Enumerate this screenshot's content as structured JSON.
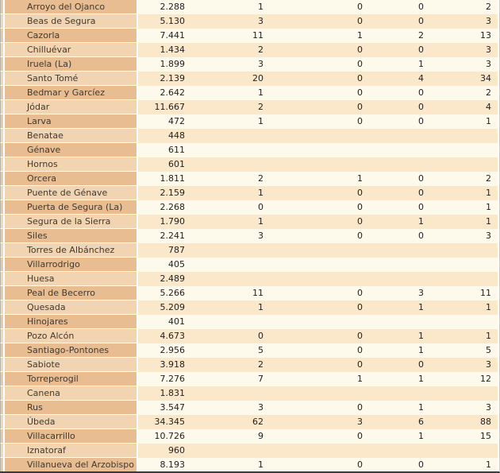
{
  "chart_data": {
    "type": "table",
    "title": "",
    "header_visible": false,
    "rows": [
      {
        "municipality": "Arroyo del Ojanco",
        "values": [
          "2.288",
          "1",
          "0",
          "0",
          "2"
        ]
      },
      {
        "municipality": "Beas de Segura",
        "values": [
          "5.130",
          "3",
          "0",
          "0",
          "3"
        ]
      },
      {
        "municipality": "Cazorla",
        "values": [
          "7.441",
          "11",
          "1",
          "2",
          "13"
        ]
      },
      {
        "municipality": "Chilluévar",
        "values": [
          "1.434",
          "2",
          "0",
          "0",
          "3"
        ]
      },
      {
        "municipality": "Iruela (La)",
        "values": [
          "1.899",
          "3",
          "0",
          "1",
          "3"
        ]
      },
      {
        "municipality": "Santo Tomé",
        "values": [
          "2.139",
          "20",
          "0",
          "4",
          "34"
        ]
      },
      {
        "municipality": "Bedmar y Garcíez",
        "values": [
          "2.642",
          "1",
          "0",
          "0",
          "2"
        ]
      },
      {
        "municipality": "Jódar",
        "values": [
          "11.667",
          "2",
          "0",
          "0",
          "4"
        ]
      },
      {
        "municipality": "Larva",
        "values": [
          "472",
          "1",
          "0",
          "0",
          "1"
        ]
      },
      {
        "municipality": "Benatae",
        "values": [
          "448",
          "",
          "",
          "",
          ""
        ]
      },
      {
        "municipality": "Génave",
        "values": [
          "611",
          "",
          "",
          "",
          ""
        ]
      },
      {
        "municipality": "Hornos",
        "values": [
          "601",
          "",
          "",
          "",
          ""
        ]
      },
      {
        "municipality": "Orcera",
        "values": [
          "1.811",
          "2",
          "1",
          "0",
          "2"
        ]
      },
      {
        "municipality": "Puente de Génave",
        "values": [
          "2.159",
          "1",
          "0",
          "0",
          "1"
        ]
      },
      {
        "municipality": "Puerta de Segura (La)",
        "values": [
          "2.268",
          "0",
          "0",
          "0",
          "1"
        ]
      },
      {
        "municipality": "Segura de la Sierra",
        "values": [
          "1.790",
          "1",
          "0",
          "1",
          "1"
        ]
      },
      {
        "municipality": "Siles",
        "values": [
          "2.241",
          "3",
          "0",
          "0",
          "3"
        ]
      },
      {
        "municipality": "Torres de Albánchez",
        "values": [
          "787",
          "",
          "",
          "",
          ""
        ]
      },
      {
        "municipality": "Villarrodrigo",
        "values": [
          "405",
          "",
          "",
          "",
          ""
        ]
      },
      {
        "municipality": "Huesa",
        "values": [
          "2.489",
          "",
          "",
          "",
          ""
        ]
      },
      {
        "municipality": "Peal de Becerro",
        "values": [
          "5.266",
          "11",
          "0",
          "3",
          "11"
        ]
      },
      {
        "municipality": "Quesada",
        "values": [
          "5.209",
          "1",
          "0",
          "1",
          "1"
        ]
      },
      {
        "municipality": "Hinojares",
        "values": [
          "401",
          "",
          "",
          "",
          ""
        ]
      },
      {
        "municipality": "Pozo Alcón",
        "values": [
          "4.673",
          "0",
          "0",
          "1",
          "1"
        ]
      },
      {
        "municipality": "Santiago-Pontones",
        "values": [
          "2.956",
          "5",
          "0",
          "1",
          "5"
        ]
      },
      {
        "municipality": "Sabiote",
        "values": [
          "3.918",
          "2",
          "0",
          "0",
          "3"
        ]
      },
      {
        "municipality": "Torreperogil",
        "values": [
          "7.276",
          "7",
          "1",
          "1",
          "12"
        ]
      },
      {
        "municipality": "Canena",
        "values": [
          "1.831",
          "",
          "",
          "",
          ""
        ]
      },
      {
        "municipality": "Rus",
        "values": [
          "3.547",
          "3",
          "0",
          "1",
          "3"
        ]
      },
      {
        "municipality": "Úbeda",
        "values": [
          "34.345",
          "62",
          "3",
          "6",
          "88"
        ]
      },
      {
        "municipality": "Villacarrillo",
        "values": [
          "10.726",
          "9",
          "0",
          "1",
          "15"
        ]
      },
      {
        "municipality": "Iznatoraf",
        "values": [
          "960",
          "",
          "",
          "",
          ""
        ]
      },
      {
        "municipality": "Villanueva del Arzobispo",
        "values": [
          "8.193",
          "1",
          "0",
          "0",
          "1"
        ]
      }
    ]
  },
  "style": {
    "name_bg_odd": "#e9bd92",
    "name_bg_even": "#f2d4b0",
    "data_bg_odd": "#fdfaec",
    "data_bg_even": "#fbe8ca",
    "separator": "#ffffff",
    "bottom_border": "#3a3a44",
    "right_border": "#c9c9c9",
    "name_text": "#413931",
    "number_text": "#1f1f1f"
  }
}
